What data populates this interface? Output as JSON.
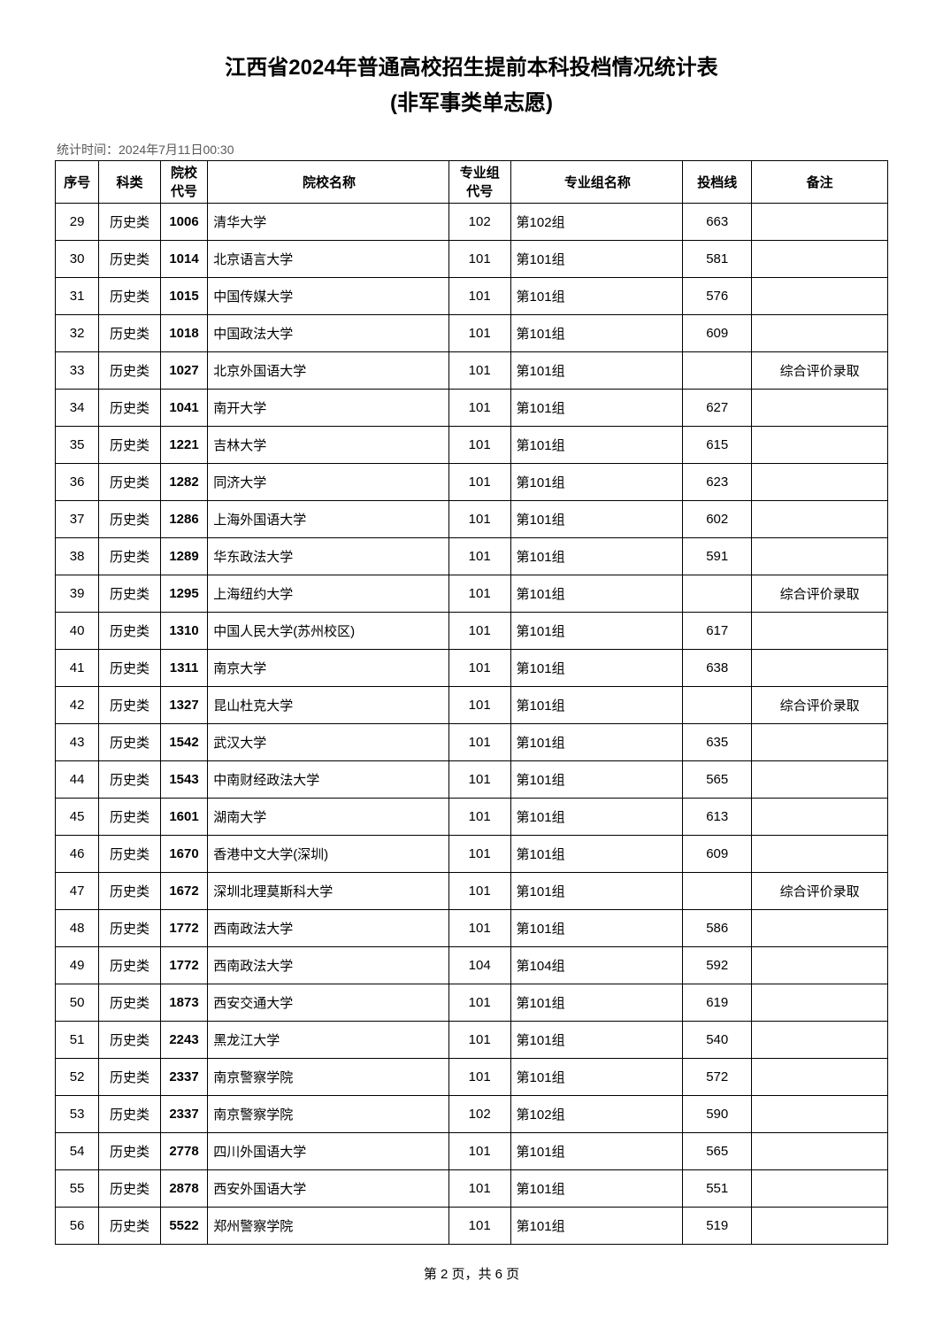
{
  "title": "江西省2024年普通高校招生提前本科投档情况统计表",
  "subtitle": "(非军事类单志愿)",
  "timestamp": "统计时间：2024年7月11日00:30",
  "headers": {
    "seq": "序号",
    "category": "科类",
    "school_code": "院校\n代号",
    "school_name": "院校名称",
    "major_code": "专业组\n代号",
    "major_name": "专业组名称",
    "score": "投档线",
    "note": "备注"
  },
  "rows": [
    {
      "seq": "29",
      "category": "历史类",
      "school_code": "1006",
      "school_name": "清华大学",
      "major_code": "102",
      "major_name": "第102组",
      "score": "663",
      "note": ""
    },
    {
      "seq": "30",
      "category": "历史类",
      "school_code": "1014",
      "school_name": "北京语言大学",
      "major_code": "101",
      "major_name": "第101组",
      "score": "581",
      "note": ""
    },
    {
      "seq": "31",
      "category": "历史类",
      "school_code": "1015",
      "school_name": "中国传媒大学",
      "major_code": "101",
      "major_name": "第101组",
      "score": "576",
      "note": ""
    },
    {
      "seq": "32",
      "category": "历史类",
      "school_code": "1018",
      "school_name": "中国政法大学",
      "major_code": "101",
      "major_name": "第101组",
      "score": "609",
      "note": ""
    },
    {
      "seq": "33",
      "category": "历史类",
      "school_code": "1027",
      "school_name": "北京外国语大学",
      "major_code": "101",
      "major_name": "第101组",
      "score": "",
      "note": "综合评价录取"
    },
    {
      "seq": "34",
      "category": "历史类",
      "school_code": "1041",
      "school_name": "南开大学",
      "major_code": "101",
      "major_name": "第101组",
      "score": "627",
      "note": ""
    },
    {
      "seq": "35",
      "category": "历史类",
      "school_code": "1221",
      "school_name": "吉林大学",
      "major_code": "101",
      "major_name": "第101组",
      "score": "615",
      "note": ""
    },
    {
      "seq": "36",
      "category": "历史类",
      "school_code": "1282",
      "school_name": "同济大学",
      "major_code": "101",
      "major_name": "第101组",
      "score": "623",
      "note": ""
    },
    {
      "seq": "37",
      "category": "历史类",
      "school_code": "1286",
      "school_name": "上海外国语大学",
      "major_code": "101",
      "major_name": "第101组",
      "score": "602",
      "note": ""
    },
    {
      "seq": "38",
      "category": "历史类",
      "school_code": "1289",
      "school_name": "华东政法大学",
      "major_code": "101",
      "major_name": "第101组",
      "score": "591",
      "note": ""
    },
    {
      "seq": "39",
      "category": "历史类",
      "school_code": "1295",
      "school_name": "上海纽约大学",
      "major_code": "101",
      "major_name": "第101组",
      "score": "",
      "note": "综合评价录取"
    },
    {
      "seq": "40",
      "category": "历史类",
      "school_code": "1310",
      "school_name": "中国人民大学(苏州校区)",
      "major_code": "101",
      "major_name": "第101组",
      "score": "617",
      "note": ""
    },
    {
      "seq": "41",
      "category": "历史类",
      "school_code": "1311",
      "school_name": "南京大学",
      "major_code": "101",
      "major_name": "第101组",
      "score": "638",
      "note": ""
    },
    {
      "seq": "42",
      "category": "历史类",
      "school_code": "1327",
      "school_name": "昆山杜克大学",
      "major_code": "101",
      "major_name": "第101组",
      "score": "",
      "note": "综合评价录取"
    },
    {
      "seq": "43",
      "category": "历史类",
      "school_code": "1542",
      "school_name": "武汉大学",
      "major_code": "101",
      "major_name": "第101组",
      "score": "635",
      "note": ""
    },
    {
      "seq": "44",
      "category": "历史类",
      "school_code": "1543",
      "school_name": "中南财经政法大学",
      "major_code": "101",
      "major_name": "第101组",
      "score": "565",
      "note": ""
    },
    {
      "seq": "45",
      "category": "历史类",
      "school_code": "1601",
      "school_name": "湖南大学",
      "major_code": "101",
      "major_name": "第101组",
      "score": "613",
      "note": ""
    },
    {
      "seq": "46",
      "category": "历史类",
      "school_code": "1670",
      "school_name": "香港中文大学(深圳)",
      "major_code": "101",
      "major_name": "第101组",
      "score": "609",
      "note": ""
    },
    {
      "seq": "47",
      "category": "历史类",
      "school_code": "1672",
      "school_name": "深圳北理莫斯科大学",
      "major_code": "101",
      "major_name": "第101组",
      "score": "",
      "note": "综合评价录取"
    },
    {
      "seq": "48",
      "category": "历史类",
      "school_code": "1772",
      "school_name": "西南政法大学",
      "major_code": "101",
      "major_name": "第101组",
      "score": "586",
      "note": ""
    },
    {
      "seq": "49",
      "category": "历史类",
      "school_code": "1772",
      "school_name": "西南政法大学",
      "major_code": "104",
      "major_name": "第104组",
      "score": "592",
      "note": ""
    },
    {
      "seq": "50",
      "category": "历史类",
      "school_code": "1873",
      "school_name": "西安交通大学",
      "major_code": "101",
      "major_name": "第101组",
      "score": "619",
      "note": ""
    },
    {
      "seq": "51",
      "category": "历史类",
      "school_code": "2243",
      "school_name": "黑龙江大学",
      "major_code": "101",
      "major_name": "第101组",
      "score": "540",
      "note": ""
    },
    {
      "seq": "52",
      "category": "历史类",
      "school_code": "2337",
      "school_name": "南京警察学院",
      "major_code": "101",
      "major_name": "第101组",
      "score": "572",
      "note": ""
    },
    {
      "seq": "53",
      "category": "历史类",
      "school_code": "2337",
      "school_name": "南京警察学院",
      "major_code": "102",
      "major_name": "第102组",
      "score": "590",
      "note": ""
    },
    {
      "seq": "54",
      "category": "历史类",
      "school_code": "2778",
      "school_name": "四川外国语大学",
      "major_code": "101",
      "major_name": "第101组",
      "score": "565",
      "note": ""
    },
    {
      "seq": "55",
      "category": "历史类",
      "school_code": "2878",
      "school_name": "西安外国语大学",
      "major_code": "101",
      "major_name": "第101组",
      "score": "551",
      "note": ""
    },
    {
      "seq": "56",
      "category": "历史类",
      "school_code": "5522",
      "school_name": "郑州警察学院",
      "major_code": "101",
      "major_name": "第101组",
      "score": "519",
      "note": ""
    }
  ],
  "pagenum": "第 2 页，共 6 页"
}
